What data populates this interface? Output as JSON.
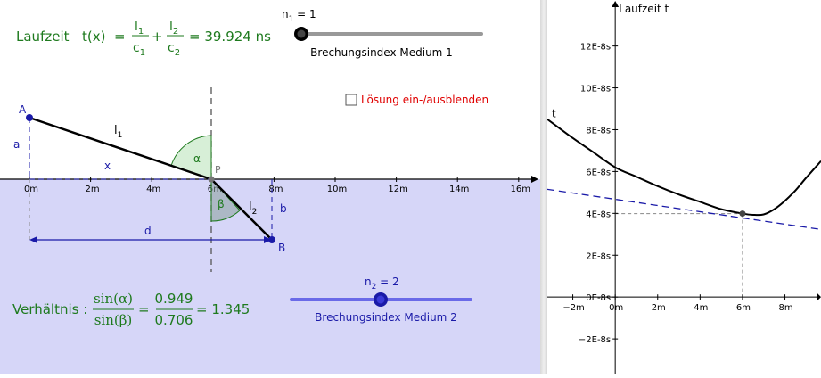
{
  "laufzeit": {
    "label": "Laufzeit",
    "fx": "t(x)",
    "eq": "=",
    "l1": "l",
    "l1_sub": "1",
    "c1": "c",
    "c1_sub": "1",
    "plus": "+",
    "l2": "l",
    "l2_sub": "2",
    "c2": "c",
    "c2_sub": "2",
    "value": "= 39.924 ns",
    "color": "#1e7a1e"
  },
  "slider1": {
    "label_main": "n",
    "label_sub": "1",
    "label_value": " = 1",
    "caption": "Brechungsindex Medium 1",
    "value": 1,
    "min": 1,
    "max": 5
  },
  "toggle": {
    "label": "Lösung ein-/ausblenden",
    "checked": false
  },
  "geometry": {
    "point_a": "A",
    "point_b": "B",
    "point_p": "P",
    "seg_l1": "l",
    "seg_l1_sub": "1",
    "seg_l2": "l",
    "seg_l2_sub": "2",
    "len_a": "a",
    "len_b": "b",
    "len_x": "x",
    "len_d": "d",
    "alpha": "α",
    "beta": "β",
    "axis_ticks": [
      "0m",
      "2m",
      "4m",
      "6m",
      "8m",
      "10m",
      "12m",
      "14m",
      "16m"
    ]
  },
  "verhaeltnis": {
    "label": "Verhältnis :",
    "num": "sin(α)",
    "den": "sin(β)",
    "eq": "=",
    "num_val": "0.949",
    "den_val": "0.706",
    "result": "= 1.345",
    "color": "#1e7a1e"
  },
  "slider2": {
    "label_main": "n",
    "label_sub": "2",
    "label_value": " = 2",
    "caption": "Brechungsindex Medium 2",
    "value": 2,
    "min": 1,
    "max": 3
  },
  "colors": {
    "medium2": "#d6d6f8",
    "blue": "#1a1aa8",
    "green_fill": "#d7efd7"
  },
  "chart_data": {
    "type": "line",
    "title": "",
    "ylabel": "Laufzeit t",
    "curve_label": "t",
    "x_ticks": [
      "−2m",
      "0m",
      "2m",
      "4m",
      "6m",
      "8m"
    ],
    "x_tick_values": [
      -2,
      0,
      2,
      4,
      6,
      8
    ],
    "y_ticks": [
      "−2E-8s",
      "0E-8s",
      "2E-8s",
      "4E-8s",
      "6E-8s",
      "8E-8s",
      "10E-8s",
      "12E-8s"
    ],
    "y_tick_values": [
      -2,
      0,
      2,
      4,
      6,
      8,
      10,
      12
    ],
    "xlim": [
      -3.2,
      9.7
    ],
    "ylim": [
      -3.7,
      14.2
    ],
    "series": [
      {
        "name": "t",
        "x": [
          -3.2,
          -2,
          -1,
          0,
          1,
          2,
          3,
          4,
          5,
          6,
          6.5,
          7,
          7.5,
          8,
          8.5,
          9,
          9.7
        ],
        "y": [
          8.5,
          7.6,
          6.9,
          6.2,
          5.75,
          5.3,
          4.9,
          4.55,
          4.2,
          3.99,
          3.93,
          3.95,
          4.2,
          4.6,
          5.1,
          5.7,
          6.5
        ]
      },
      {
        "name": "",
        "x": [
          -3.2,
          9.7
        ],
        "y": [
          5.15,
          3.23
        ]
      }
    ],
    "marked_point": {
      "x": 6,
      "y": 3.99
    },
    "grid": false
  }
}
